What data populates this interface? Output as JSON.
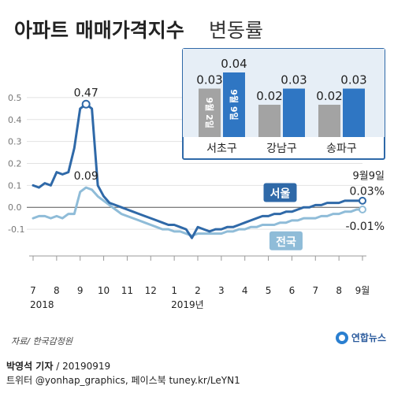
{
  "title": {
    "main": "아파트 매매가격지수",
    "sub": "변동률"
  },
  "colors": {
    "seoul": "#2f69a8",
    "national": "#8fbcd8",
    "inset_grey": "#a3a3a3",
    "inset_blue": "#2f76c3",
    "inset_bg": "#e6eef6",
    "inset_border": "#2f69a8"
  },
  "chart_data": [
    {
      "type": "line",
      "title": "",
      "ylim": [
        -0.15,
        0.55
      ],
      "y_ticks": [
        "0.5",
        "0.4",
        "0.3",
        "0.2",
        "0.1",
        "0.0",
        "-0.1"
      ],
      "y_tick_values": [
        0.5,
        0.4,
        0.3,
        0.2,
        0.1,
        0.0,
        -0.1
      ],
      "x_ticks": [
        "7",
        "8",
        "9",
        "10",
        "11",
        "12",
        "1",
        "2",
        "3",
        "4",
        "5",
        "6",
        "7",
        "8",
        "9월"
      ],
      "x_tick_index": [
        0,
        4,
        8,
        12,
        16,
        20,
        24,
        28,
        32,
        36,
        40,
        44,
        48,
        52,
        56
      ],
      "year_labels": [
        {
          "label": "2018",
          "index": 0
        },
        {
          "label": "2019년",
          "index": 24
        }
      ],
      "series": [
        {
          "name": "서울",
          "values": [
            0.1,
            0.09,
            0.11,
            0.1,
            0.16,
            0.15,
            0.16,
            0.27,
            0.45,
            0.47,
            0.45,
            0.1,
            0.05,
            0.02,
            0.01,
            0.0,
            -0.01,
            -0.02,
            -0.03,
            -0.04,
            -0.05,
            -0.06,
            -0.07,
            -0.08,
            -0.08,
            -0.09,
            -0.1,
            -0.14,
            -0.09,
            -0.1,
            -0.11,
            -0.1,
            -0.1,
            -0.09,
            -0.09,
            -0.08,
            -0.07,
            -0.06,
            -0.05,
            -0.04,
            -0.04,
            -0.03,
            -0.03,
            -0.02,
            -0.02,
            -0.01,
            0.0,
            0.0,
            0.01,
            0.01,
            0.02,
            0.02,
            0.02,
            0.03,
            0.03,
            0.03,
            0.03
          ]
        },
        {
          "name": "전국",
          "values": [
            -0.05,
            -0.04,
            -0.04,
            -0.05,
            -0.04,
            -0.05,
            -0.03,
            -0.03,
            0.07,
            0.09,
            0.08,
            0.05,
            0.03,
            0.01,
            -0.01,
            -0.03,
            -0.04,
            -0.05,
            -0.06,
            -0.07,
            -0.08,
            -0.09,
            -0.1,
            -0.1,
            -0.11,
            -0.11,
            -0.12,
            -0.13,
            -0.12,
            -0.12,
            -0.12,
            -0.12,
            -0.12,
            -0.11,
            -0.11,
            -0.1,
            -0.1,
            -0.09,
            -0.09,
            -0.08,
            -0.08,
            -0.08,
            -0.07,
            -0.07,
            -0.06,
            -0.06,
            -0.05,
            -0.05,
            -0.05,
            -0.04,
            -0.04,
            -0.03,
            -0.03,
            -0.02,
            -0.02,
            -0.01,
            -0.01
          ]
        }
      ],
      "annotations": {
        "peak_seoul": "0.47",
        "peak_national": "0.09",
        "date_label": "9월9일",
        "end_seoul": "0.03%",
        "end_national": "-0.01%",
        "series_label_seoul": "서울",
        "series_label_national": "전국"
      }
    },
    {
      "type": "bar",
      "categories": [
        "서초구",
        "강남구",
        "송파구"
      ],
      "series": [
        {
          "name": "9월 2일",
          "values": [
            0.03,
            0.02,
            0.02
          ]
        },
        {
          "name": "9월 9일",
          "values": [
            0.04,
            0.03,
            0.03
          ]
        }
      ],
      "value_labels": [
        [
          "0.03",
          "0.04"
        ],
        [
          "0.02",
          "0.03"
        ],
        [
          "0.02",
          "0.03"
        ]
      ],
      "ylim": [
        0,
        0.04
      ]
    }
  ],
  "footer": {
    "source": "자료/ 한국감정원",
    "logo": "연합뉴스",
    "author": "박영석 기자",
    "date": "/  20190919",
    "social": "트위터 @yonhap_graphics, 페이스북 tuney.kr/LeYN1"
  }
}
